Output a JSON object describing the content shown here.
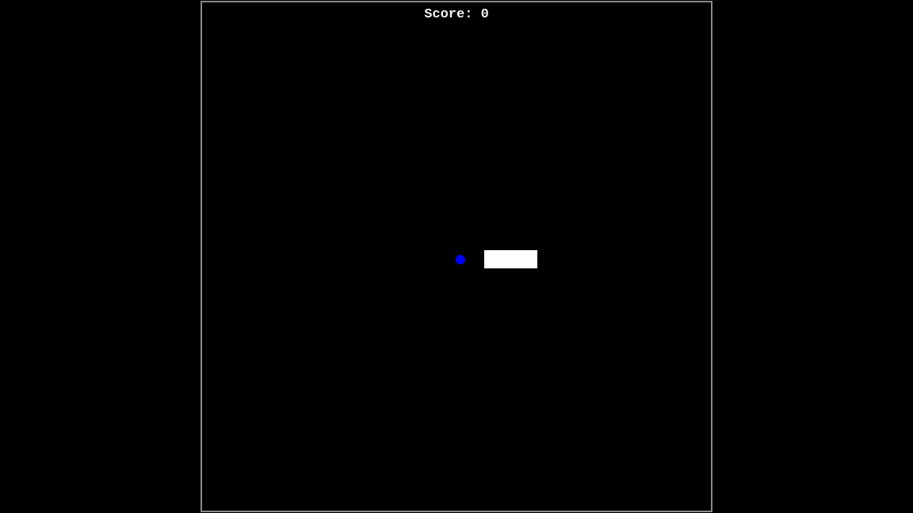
{
  "game": {
    "score_text": "Score: 0",
    "score": 0
  },
  "colors": {
    "background": "#000000",
    "frame_border": "#8a8a8a",
    "ball": "#0000ff",
    "paddle": "#ffffff",
    "score_text": "#f2f2f2"
  }
}
